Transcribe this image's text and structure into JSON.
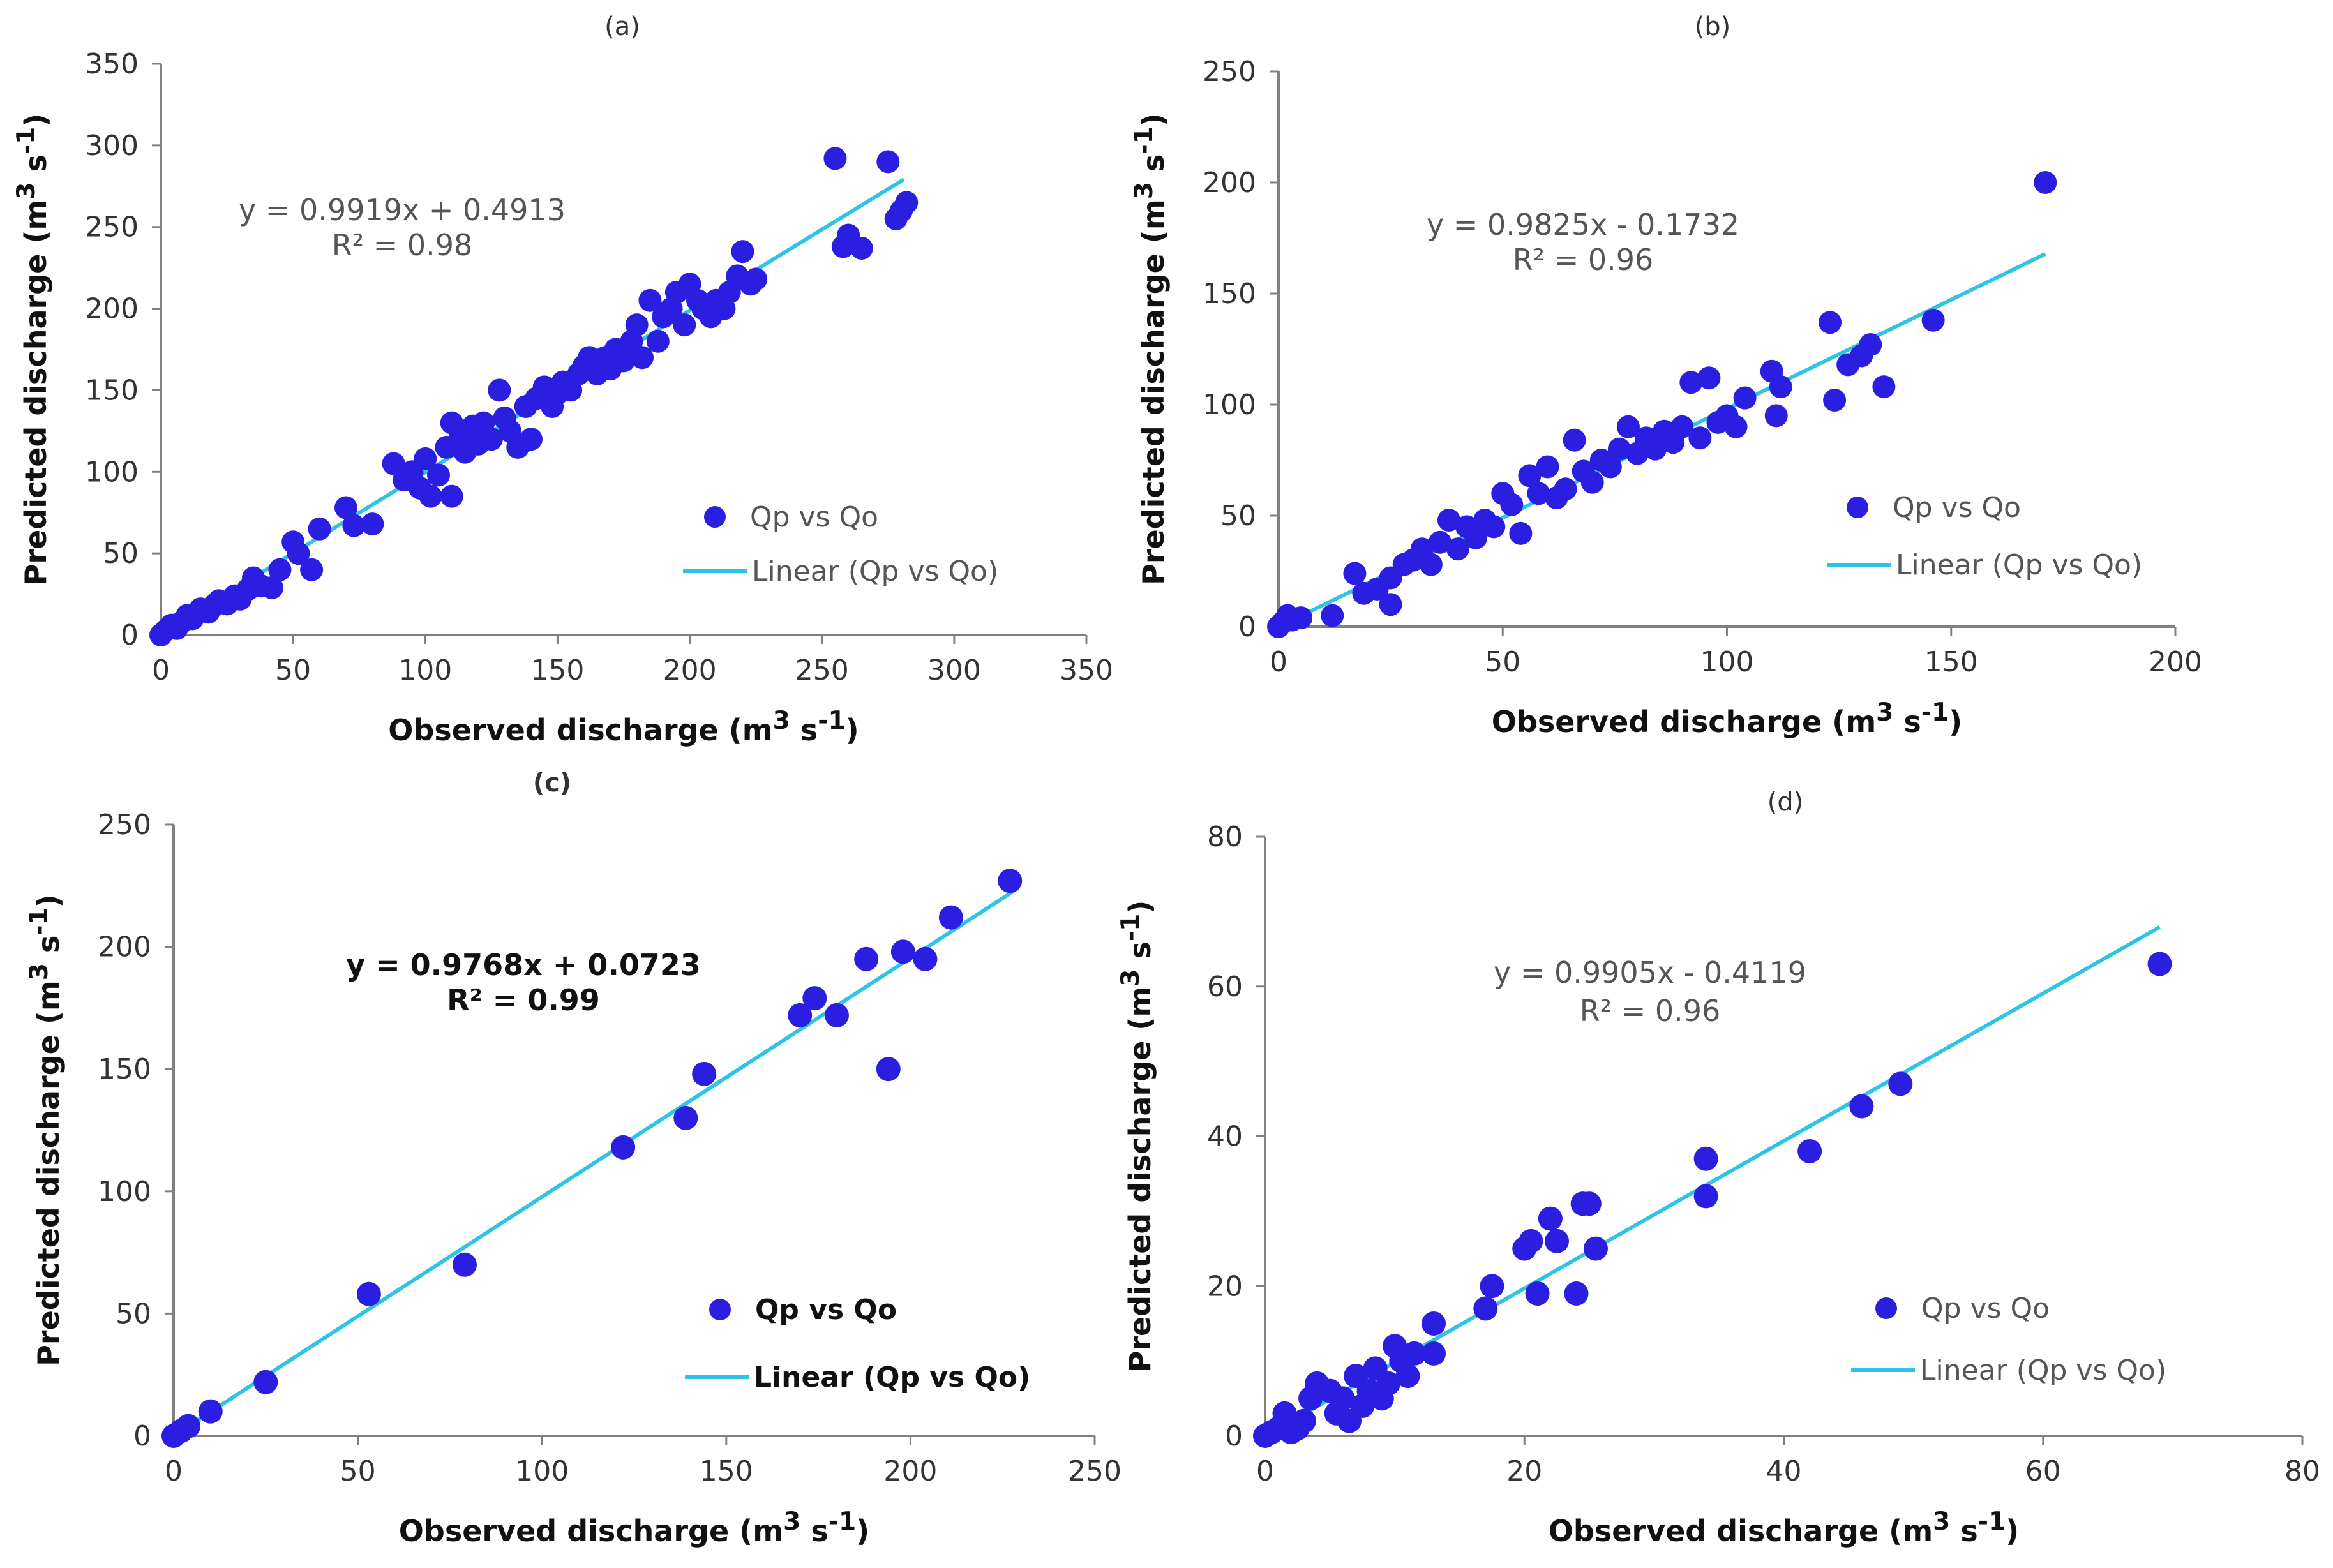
{
  "chart_data": [
    {
      "type": "scatter",
      "panel_label": "(a)",
      "xlabel": "Observed discharge",
      "ylabel": "Predicted discharge",
      "unit_base": "m",
      "unit_exp": "3",
      "unit_mid": " s",
      "unit_exp2": "-1",
      "xlim": [
        0,
        350
      ],
      "ylim": [
        0,
        350
      ],
      "xticks": [
        0,
        50,
        100,
        150,
        200,
        250,
        300,
        350
      ],
      "yticks": [
        0,
        50,
        100,
        150,
        200,
        250,
        300,
        350
      ],
      "equation": "y = 0.9919x + 0.4913",
      "r2": "R² = 0.98",
      "trend": {
        "slope": 0.9919,
        "intercept": 0.4913,
        "x_range": [
          0,
          281
        ]
      },
      "legend": {
        "points": "Qp vs Qo",
        "line": "Linear (Qp vs Qo)"
      },
      "colors": {
        "points": "#2a1fe0",
        "line": "#2ec4e6",
        "text": "#555555"
      },
      "points": [
        [
          0,
          0
        ],
        [
          2,
          3
        ],
        [
          4,
          6
        ],
        [
          6,
          4
        ],
        [
          8,
          8
        ],
        [
          10,
          12
        ],
        [
          12,
          10
        ],
        [
          15,
          16
        ],
        [
          18,
          14
        ],
        [
          20,
          18
        ],
        [
          22,
          21
        ],
        [
          25,
          19
        ],
        [
          28,
          24
        ],
        [
          30,
          22
        ],
        [
          33,
          28
        ],
        [
          35,
          35
        ],
        [
          38,
          30
        ],
        [
          42,
          29
        ],
        [
          45,
          40
        ],
        [
          50,
          57
        ],
        [
          52,
          50
        ],
        [
          57,
          40
        ],
        [
          60,
          65
        ],
        [
          70,
          78
        ],
        [
          73,
          67
        ],
        [
          80,
          68
        ],
        [
          88,
          105
        ],
        [
          92,
          95
        ],
        [
          95,
          100
        ],
        [
          98,
          90
        ],
        [
          100,
          108
        ],
        [
          102,
          85
        ],
        [
          105,
          98
        ],
        [
          108,
          115
        ],
        [
          110,
          85
        ],
        [
          110,
          130
        ],
        [
          113,
          120
        ],
        [
          115,
          112
        ],
        [
          118,
          128
        ],
        [
          120,
          117
        ],
        [
          122,
          130
        ],
        [
          125,
          120
        ],
        [
          128,
          150
        ],
        [
          130,
          133
        ],
        [
          132,
          125
        ],
        [
          135,
          115
        ],
        [
          138,
          140
        ],
        [
          140,
          120
        ],
        [
          142,
          145
        ],
        [
          145,
          152
        ],
        [
          148,
          140
        ],
        [
          150,
          148
        ],
        [
          152,
          155
        ],
        [
          155,
          150
        ],
        [
          158,
          160
        ],
        [
          160,
          165
        ],
        [
          162,
          170
        ],
        [
          165,
          160
        ],
        [
          168,
          170
        ],
        [
          170,
          163
        ],
        [
          172,
          175
        ],
        [
          175,
          168
        ],
        [
          178,
          180
        ],
        [
          180,
          190
        ],
        [
          182,
          170
        ],
        [
          185,
          205
        ],
        [
          188,
          180
        ],
        [
          190,
          195
        ],
        [
          193,
          200
        ],
        [
          195,
          210
        ],
        [
          198,
          190
        ],
        [
          200,
          215
        ],
        [
          203,
          205
        ],
        [
          205,
          200
        ],
        [
          208,
          195
        ],
        [
          210,
          205
        ],
        [
          213,
          200
        ],
        [
          215,
          210
        ],
        [
          218,
          220
        ],
        [
          220,
          235
        ],
        [
          223,
          215
        ],
        [
          225,
          218
        ],
        [
          255,
          292
        ],
        [
          258,
          238
        ],
        [
          260,
          245
        ],
        [
          265,
          237
        ],
        [
          275,
          290
        ],
        [
          278,
          255
        ],
        [
          280,
          260
        ],
        [
          282,
          265
        ]
      ]
    },
    {
      "type": "scatter",
      "panel_label": "(b)",
      "xlabel": "Observed discharge",
      "ylabel": "Predicted discharge",
      "unit_base": "m",
      "unit_exp": "3",
      "unit_mid": " s",
      "unit_exp2": "-1",
      "xlim": [
        0,
        200
      ],
      "ylim": [
        0,
        250
      ],
      "xticks": [
        0,
        50,
        100,
        150,
        200
      ],
      "yticks": [
        0,
        50,
        100,
        150,
        200,
        250
      ],
      "equation": "y = 0.9825x - 0.1732",
      "r2": "R² = 0.96",
      "trend": {
        "slope": 0.9825,
        "intercept": -0.1732,
        "x_range": [
          0,
          171
        ]
      },
      "legend": {
        "points": "Qp vs Qo",
        "line": "Linear (Qp vs Qo)"
      },
      "colors": {
        "points": "#2a1fe0",
        "line": "#2ec4e6",
        "text": "#555555"
      },
      "points": [
        [
          0,
          0
        ],
        [
          1,
          2
        ],
        [
          2,
          5
        ],
        [
          3,
          3
        ],
        [
          5,
          4
        ],
        [
          12,
          5
        ],
        [
          17,
          24
        ],
        [
          19,
          15
        ],
        [
          22,
          17
        ],
        [
          25,
          10
        ],
        [
          25,
          22
        ],
        [
          28,
          28
        ],
        [
          30,
          30
        ],
        [
          32,
          35
        ],
        [
          34,
          28
        ],
        [
          36,
          38
        ],
        [
          38,
          48
        ],
        [
          40,
          35
        ],
        [
          42,
          45
        ],
        [
          44,
          40
        ],
        [
          46,
          48
        ],
        [
          48,
          45
        ],
        [
          50,
          60
        ],
        [
          52,
          55
        ],
        [
          54,
          42
        ],
        [
          56,
          68
        ],
        [
          58,
          60
        ],
        [
          60,
          72
        ],
        [
          62,
          58
        ],
        [
          64,
          62
        ],
        [
          66,
          84
        ],
        [
          68,
          70
        ],
        [
          70,
          65
        ],
        [
          72,
          75
        ],
        [
          74,
          72
        ],
        [
          76,
          80
        ],
        [
          78,
          90
        ],
        [
          80,
          78
        ],
        [
          82,
          85
        ],
        [
          84,
          80
        ],
        [
          86,
          88
        ],
        [
          88,
          83
        ],
        [
          90,
          90
        ],
        [
          92,
          110
        ],
        [
          94,
          85
        ],
        [
          96,
          112
        ],
        [
          98,
          92
        ],
        [
          100,
          95
        ],
        [
          102,
          90
        ],
        [
          104,
          103
        ],
        [
          110,
          115
        ],
        [
          112,
          108
        ],
        [
          111,
          95
        ],
        [
          123,
          137
        ],
        [
          124,
          102
        ],
        [
          127,
          118
        ],
        [
          130,
          122
        ],
        [
          132,
          127
        ],
        [
          135,
          108
        ],
        [
          146,
          138
        ],
        [
          171,
          200
        ]
      ]
    },
    {
      "type": "scatter",
      "panel_label": "(c)",
      "xlabel": "Observed discharge",
      "ylabel": "Predicted discharge",
      "unit_base": "m",
      "unit_exp": "3",
      "unit_mid": " s",
      "unit_exp2": "-1",
      "xlim": [
        0,
        250
      ],
      "ylim": [
        0,
        250
      ],
      "xticks": [
        0,
        50,
        100,
        150,
        200,
        250
      ],
      "yticks": [
        0,
        50,
        100,
        150,
        200,
        250
      ],
      "equation": "y = 0.9768x + 0.0723",
      "r2": "R² = 0.99",
      "trend": {
        "slope": 0.9768,
        "intercept": 0.0723,
        "x_range": [
          0,
          228
        ]
      },
      "legend": {
        "points": "Qp vs Qo",
        "line": "Linear (Qp vs Qo)"
      },
      "colors": {
        "points": "#2a1fe0",
        "line": "#2ec4e6",
        "text": "#111111"
      },
      "points": [
        [
          0,
          0
        ],
        [
          2,
          2
        ],
        [
          4,
          4
        ],
        [
          10,
          10
        ],
        [
          25,
          22
        ],
        [
          53,
          58
        ],
        [
          79,
          70
        ],
        [
          122,
          118
        ],
        [
          139,
          130
        ],
        [
          144,
          148
        ],
        [
          170,
          172
        ],
        [
          174,
          179
        ],
        [
          180,
          172
        ],
        [
          188,
          195
        ],
        [
          194,
          150
        ],
        [
          198,
          198
        ],
        [
          204,
          195
        ],
        [
          211,
          212
        ],
        [
          227,
          227
        ]
      ]
    },
    {
      "type": "scatter",
      "panel_label": "(d)",
      "xlabel": "Observed discharge",
      "ylabel": "Predicted discharge",
      "unit_base": "m",
      "unit_exp": "3",
      "unit_mid": " s",
      "unit_exp2": "-1",
      "xlim": [
        0,
        80
      ],
      "ylim": [
        0,
        80
      ],
      "xticks": [
        0,
        20,
        40,
        60,
        80
      ],
      "yticks": [
        0,
        20,
        40,
        60,
        80
      ],
      "equation": "y = 0.9905x - 0.4119",
      "r2": "R² = 0.96",
      "trend": {
        "slope": 0.9905,
        "intercept": -0.4119,
        "x_range": [
          0,
          69
        ]
      },
      "legend": {
        "points": "Qp vs Qo",
        "line": "Linear (Qp vs Qo)"
      },
      "colors": {
        "points": "#2a1fe0",
        "line": "#2ec4e6",
        "text": "#555555"
      },
      "points": [
        [
          0,
          0
        ],
        [
          0.5,
          0.5
        ],
        [
          1,
          1
        ],
        [
          1.5,
          3
        ],
        [
          2,
          0.5
        ],
        [
          2.5,
          1
        ],
        [
          3,
          2
        ],
        [
          3.5,
          5
        ],
        [
          4,
          7
        ],
        [
          5,
          6
        ],
        [
          5.5,
          3
        ],
        [
          6,
          5
        ],
        [
          6.5,
          2
        ],
        [
          7,
          8
        ],
        [
          7.5,
          4
        ],
        [
          8,
          6
        ],
        [
          8.5,
          9
        ],
        [
          9,
          5
        ],
        [
          9.5,
          7
        ],
        [
          10,
          12
        ],
        [
          10.5,
          10
        ],
        [
          11,
          8
        ],
        [
          11.5,
          11
        ],
        [
          13,
          15
        ],
        [
          13,
          11
        ],
        [
          17,
          17
        ],
        [
          17.5,
          20
        ],
        [
          20,
          25
        ],
        [
          20.5,
          26
        ],
        [
          21,
          19
        ],
        [
          22,
          29
        ],
        [
          22.5,
          26
        ],
        [
          24,
          19
        ],
        [
          24.5,
          31
        ],
        [
          25,
          31
        ],
        [
          25.5,
          25
        ],
        [
          34,
          32
        ],
        [
          34,
          37
        ],
        [
          42,
          38
        ],
        [
          46,
          44
        ],
        [
          49,
          47
        ],
        [
          69,
          63
        ]
      ]
    }
  ]
}
